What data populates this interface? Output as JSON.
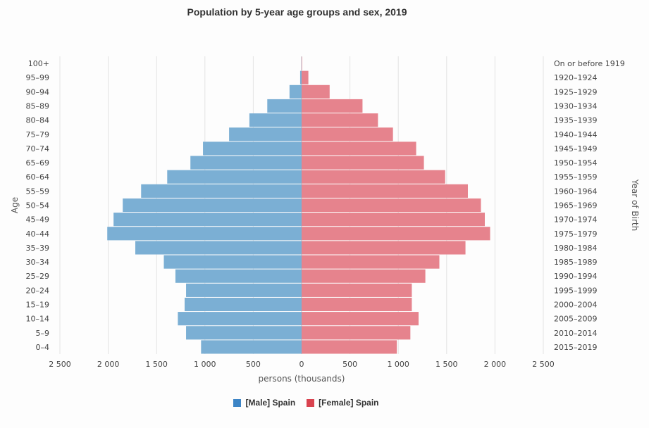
{
  "chart_data": {
    "type": "bar",
    "orientation": "horizontal",
    "layout": "population-pyramid",
    "title": "Population by 5-year age groups and sex, 2019",
    "xlabel": "persons (thousands)",
    "ylabel": "Age",
    "y2label": "Year of Birth",
    "xlim": [
      -2500,
      2500
    ],
    "xticks": [
      -2500,
      -2000,
      -1500,
      -1000,
      -500,
      0,
      500,
      1000,
      1500,
      2000,
      2500
    ],
    "xtick_labels": [
      "2 500",
      "2 000",
      "1 500",
      "1 000",
      "500",
      "0",
      "500",
      "1 000",
      "1 500",
      "2 000",
      "2 500"
    ],
    "grid": true,
    "legend_position": "bottom",
    "categories": [
      "0–4",
      "5–9",
      "10–14",
      "15–19",
      "20–24",
      "25–29",
      "30–34",
      "35–39",
      "40–44",
      "45–49",
      "50–54",
      "55–59",
      "60–64",
      "65–69",
      "70–74",
      "75–79",
      "80–84",
      "85–89",
      "90–94",
      "95–99",
      "100+"
    ],
    "birth_years": [
      "2015–2019",
      "2010–2014",
      "2005–2009",
      "2000–2004",
      "1995–1999",
      "1990–1994",
      "1985–1989",
      "1980–1984",
      "1975–1979",
      "1970–1974",
      "1965–1969",
      "1960–1964",
      "1955–1959",
      "1950–1954",
      "1945–1949",
      "1940–1944",
      "1935–1939",
      "1930–1934",
      "1925–1929",
      "1920–1924",
      "On or before 1919"
    ],
    "series": [
      {
        "name": "[Male] Spain",
        "color": "#7bafd4",
        "legend_color": "#3d85c6",
        "side": "left",
        "values": [
          1040,
          1195,
          1280,
          1210,
          1195,
          1305,
          1425,
          1720,
          2010,
          1945,
          1850,
          1660,
          1390,
          1150,
          1020,
          750,
          540,
          355,
          125,
          15,
          2
        ]
      },
      {
        "name": "[Female] Spain",
        "color": "#e6838d",
        "legend_color": "#d9434f",
        "side": "right",
        "values": [
          985,
          1125,
          1210,
          1140,
          1140,
          1280,
          1425,
          1695,
          1950,
          1895,
          1855,
          1720,
          1485,
          1265,
          1185,
          945,
          790,
          630,
          290,
          70,
          5
        ]
      }
    ]
  }
}
